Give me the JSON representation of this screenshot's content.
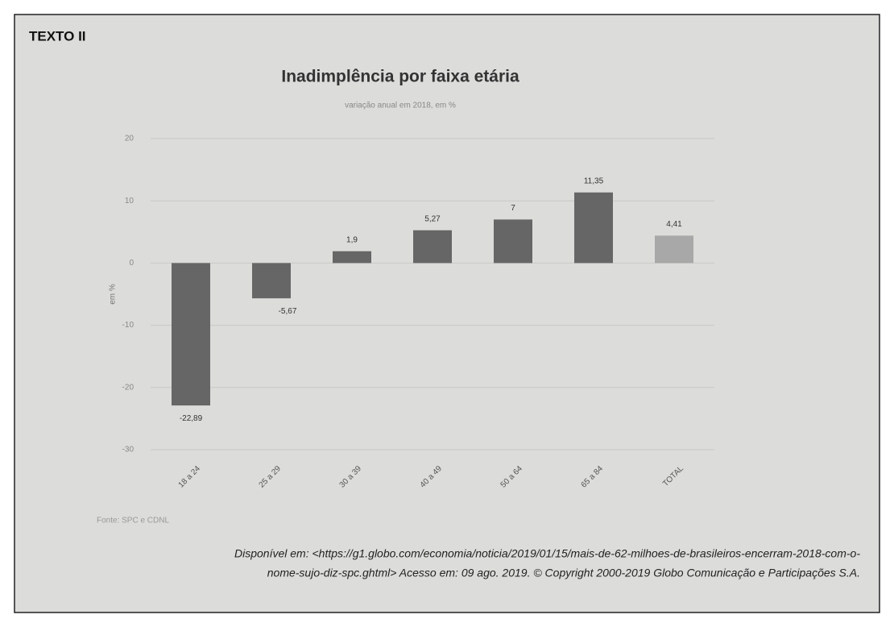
{
  "heading": "TEXTO II",
  "chart_data": {
    "type": "bar",
    "title": "Inadimplência por faixa etária",
    "subtitle": "variação anual em 2018, em %",
    "y_label": "em %",
    "categories": [
      "18 a 24",
      "25 a 29",
      "30 a 39",
      "40 a 49",
      "50 a 64",
      "65 a 84",
      "TOTAL"
    ],
    "values": [
      -22.89,
      -5.67,
      1.9,
      5.27,
      7,
      11.35,
      4.41
    ],
    "value_labels": [
      "-22,89",
      "-5,67",
      "1,9",
      "5,27",
      "7",
      "11,35",
      "4,41"
    ],
    "colors": [
      "#666666",
      "#666666",
      "#666666",
      "#666666",
      "#666666",
      "#666666",
      "#a8a8a8"
    ],
    "ylim": [
      -30,
      20
    ],
    "yticks": [
      -30,
      -20,
      -10,
      0,
      10,
      20
    ],
    "grid": true,
    "source": "Fonte: SPC e CDNL"
  },
  "citation": [
    "Disponível em: <https://g1.globo.com/economia/noticia/2019/01/15/mais-de-62-milhoes-de-brasileiros-encerram-2018-com-o-",
    "nome-sujo-diz-spc.ghtml> Acesso em: 09 ago. 2019. © Copyright 2000-2019 Globo Comunicação e Participações S.A."
  ]
}
